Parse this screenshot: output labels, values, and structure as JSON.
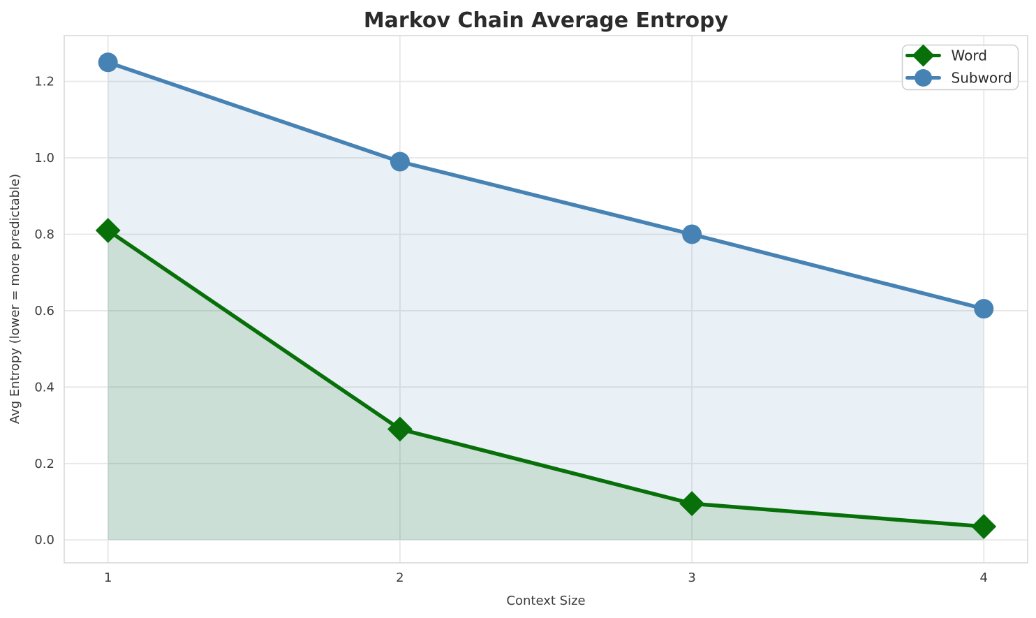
{
  "chart_data": {
    "type": "line",
    "title": "Markov Chain Average Entropy",
    "xlabel": "Context Size",
    "ylabel": "Avg Entropy (lower = more predictable)",
    "x": [
      1,
      2,
      3,
      4
    ],
    "series": [
      {
        "name": "Word",
        "marker": "diamond",
        "color": "#087008",
        "fill_color": "rgba(8,112,8,0.13)",
        "values": [
          0.81,
          0.29,
          0.095,
          0.035
        ]
      },
      {
        "name": "Subword",
        "marker": "circle",
        "color": "#4682b4",
        "fill_color": "rgba(70,130,180,0.12)",
        "values": [
          1.25,
          0.99,
          0.8,
          0.605
        ]
      }
    ],
    "fill_baseline": 0,
    "xticks": [
      1,
      2,
      3,
      4
    ],
    "yticks": [
      0.0,
      0.2,
      0.4,
      0.6,
      0.8,
      1.0,
      1.2
    ],
    "xlim": [
      0.85,
      4.15
    ],
    "ylim": [
      -0.06,
      1.32
    ],
    "grid": true,
    "legend": {
      "position": "upper right",
      "entries": [
        "Word",
        "Subword"
      ]
    },
    "style": {
      "grid_color": "#e7e7e7",
      "spine_color": "#d8d8d8",
      "tick_color": "#3c3c3c",
      "title_color": "#2b2b2b",
      "background": "#ffffff"
    }
  }
}
